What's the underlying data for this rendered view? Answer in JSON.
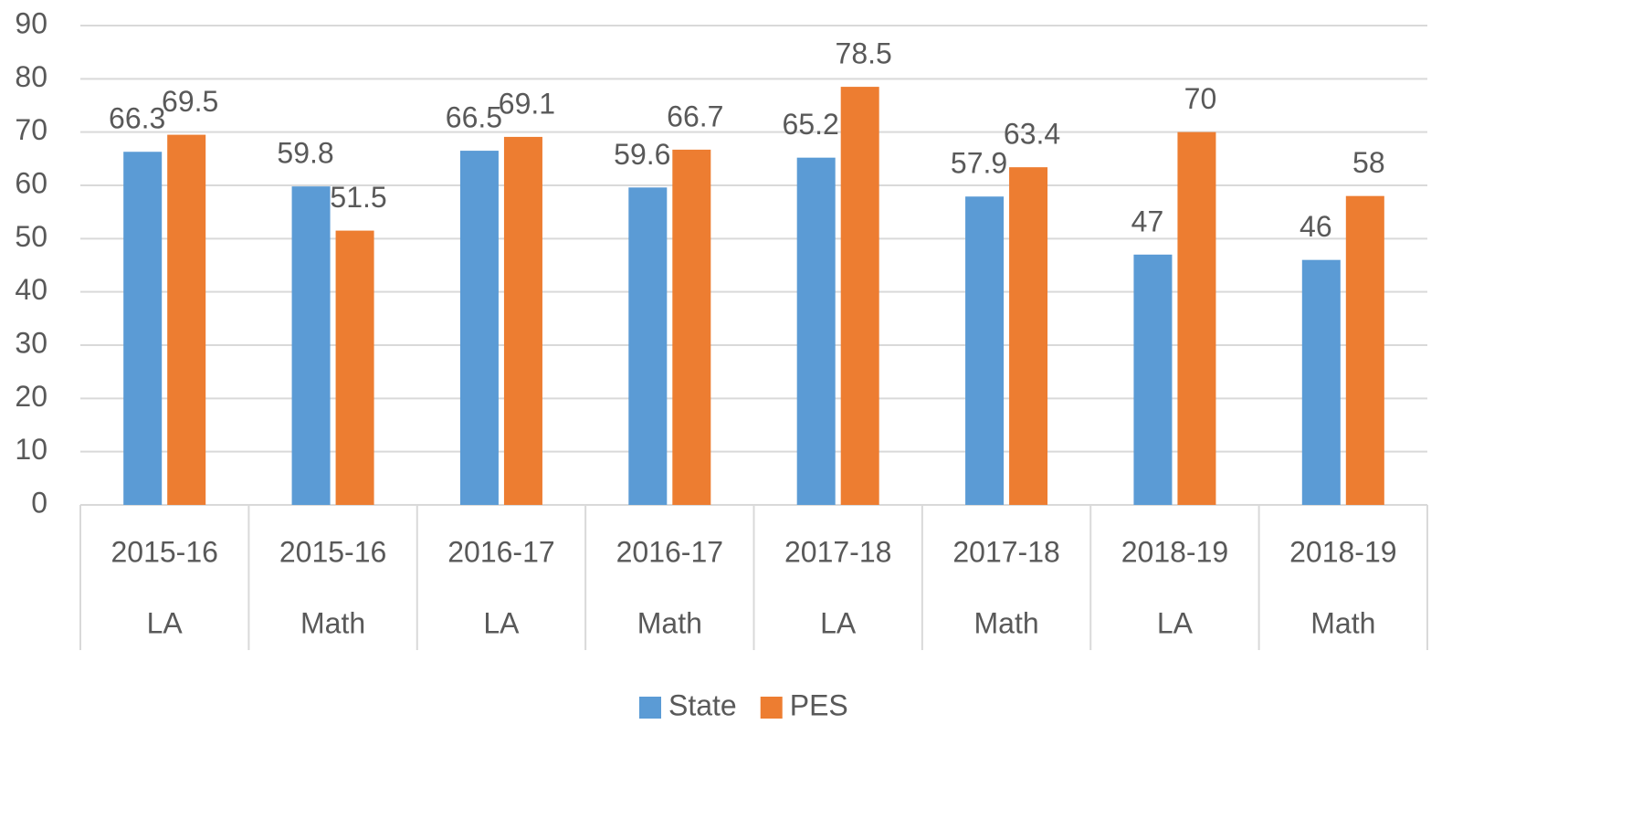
{
  "chart_data": {
    "type": "bar",
    "categories": [
      [
        "2015-16",
        "LA"
      ],
      [
        "2015-16",
        "Math"
      ],
      [
        "2016-17",
        "LA"
      ],
      [
        "2016-17",
        "Math"
      ],
      [
        "2017-18",
        "LA"
      ],
      [
        "2017-18",
        "Math"
      ],
      [
        "2018-19",
        "LA"
      ],
      [
        "2018-19",
        "Math"
      ]
    ],
    "series": [
      {
        "name": "State",
        "color": "#5b9bd5",
        "values": [
          66.3,
          59.8,
          66.5,
          59.6,
          65.2,
          57.9,
          47,
          46
        ]
      },
      {
        "name": "PES",
        "color": "#ed7d31",
        "values": [
          69.5,
          51.5,
          69.1,
          66.7,
          78.5,
          63.4,
          70,
          58
        ]
      }
    ],
    "ylim": [
      0,
      90
    ],
    "yticks": [
      0,
      10,
      20,
      30,
      40,
      50,
      60,
      70,
      80,
      90
    ],
    "grid": true,
    "legend": "bottom"
  }
}
